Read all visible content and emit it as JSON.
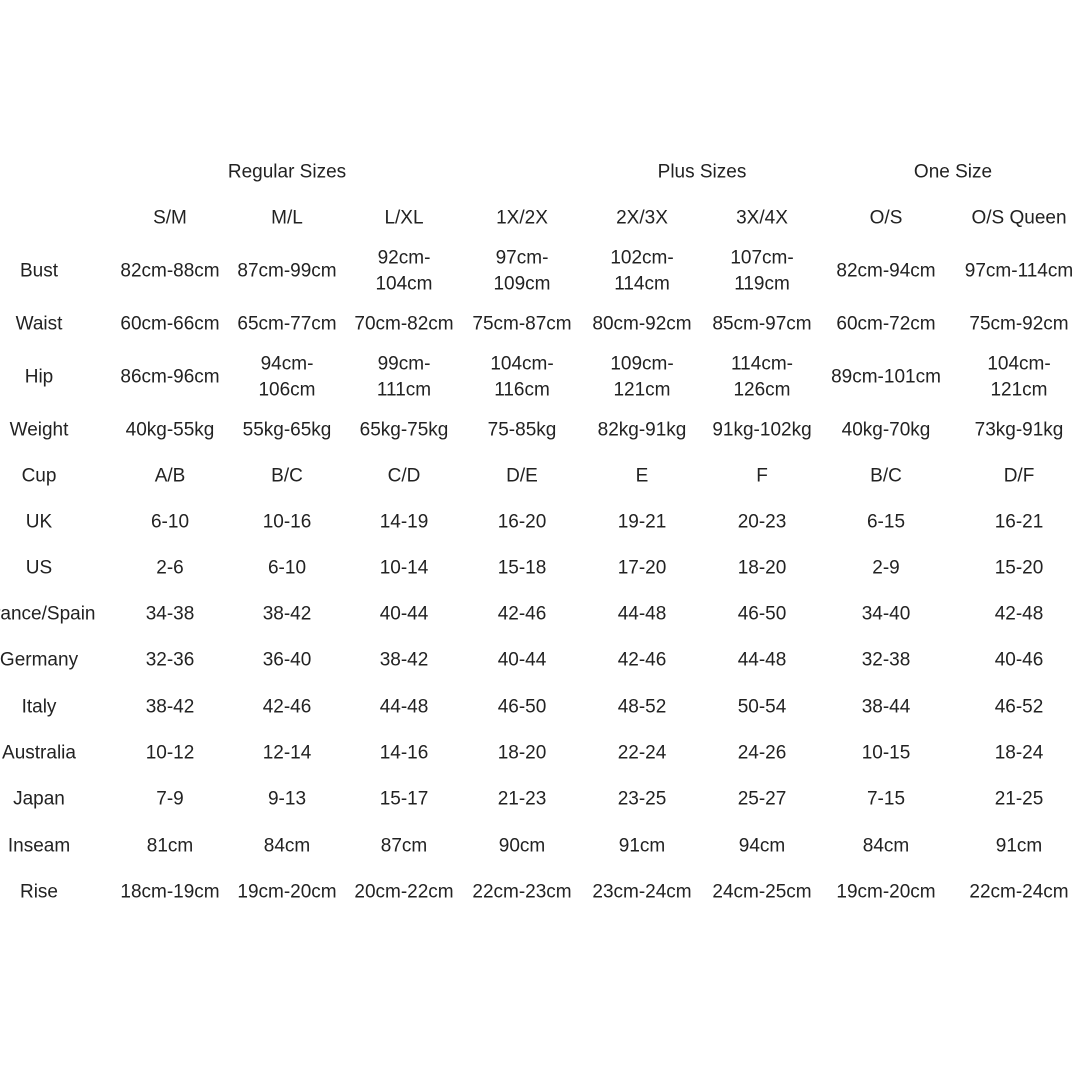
{
  "table": {
    "group_headers": [
      "Regular Sizes",
      "Plus Sizes",
      "One Size"
    ],
    "columns": [
      "S/M",
      "M/L",
      "L/XL",
      "1X/2X",
      "2X/3X",
      "3X/4X",
      "O/S",
      "O/S Queen"
    ],
    "rows": [
      {
        "label": "Bust",
        "cells": [
          "82cm-88cm",
          "87cm-99cm",
          [
            "92cm-",
            "104cm"
          ],
          [
            "97cm-",
            "109cm"
          ],
          [
            "102cm-",
            "114cm"
          ],
          [
            "107cm-",
            "119cm"
          ],
          "82cm-94cm",
          "97cm-114cm"
        ]
      },
      {
        "label": "Waist",
        "cells": [
          "60cm-66cm",
          "65cm-77cm",
          "70cm-82cm",
          "75cm-87cm",
          "80cm-92cm",
          "85cm-97cm",
          "60cm-72cm",
          "75cm-92cm"
        ]
      },
      {
        "label": "Hip",
        "cells": [
          "86cm-96cm",
          [
            "94cm-",
            "106cm"
          ],
          [
            "99cm-",
            "111cm"
          ],
          [
            "104cm-",
            "116cm"
          ],
          [
            "109cm-",
            "121cm"
          ],
          [
            "114cm-",
            "126cm"
          ],
          "89cm-101cm",
          [
            "104cm-",
            "121cm"
          ]
        ]
      },
      {
        "label": "Weight",
        "cells": [
          "40kg-55kg",
          "55kg-65kg",
          "65kg-75kg",
          "75-85kg",
          "82kg-91kg",
          "91kg-102kg",
          "40kg-70kg",
          "73kg-91kg"
        ]
      },
      {
        "label": "Cup",
        "cells": [
          "A/B",
          "B/C",
          "C/D",
          "D/E",
          "E",
          "F",
          "B/C",
          "D/F"
        ]
      },
      {
        "label": "UK",
        "cells": [
          "6-10",
          "10-16",
          "14-19",
          "16-20",
          "19-21",
          "20-23",
          "6-15",
          "16-21"
        ]
      },
      {
        "label": "US",
        "cells": [
          "2-6",
          "6-10",
          "10-14",
          "15-18",
          "17-20",
          "18-20",
          "2-9",
          "15-20"
        ]
      },
      {
        "label": "France/Spain",
        "cells": [
          "34-38",
          "38-42",
          "40-44",
          "42-46",
          "44-48",
          "46-50",
          "34-40",
          "42-48"
        ]
      },
      {
        "label": "Germany",
        "cells": [
          "32-36",
          "36-40",
          "38-42",
          "40-44",
          "42-46",
          "44-48",
          "32-38",
          "40-46"
        ]
      },
      {
        "label": "Italy",
        "cells": [
          "38-42",
          "42-46",
          "44-48",
          "46-50",
          "48-52",
          "50-54",
          "38-44",
          "46-52"
        ]
      },
      {
        "label": "Australia",
        "cells": [
          "10-12",
          "12-14",
          "14-16",
          "18-20",
          "22-24",
          "24-26",
          "10-15",
          "18-24"
        ]
      },
      {
        "label": "Japan",
        "cells": [
          "7-9",
          "9-13",
          "15-17",
          "21-23",
          "23-25",
          "25-27",
          "7-15",
          "21-25"
        ]
      },
      {
        "label": "Inseam",
        "cells": [
          "81cm",
          "84cm",
          "87cm",
          "90cm",
          "91cm",
          "94cm",
          "84cm",
          "91cm"
        ]
      },
      {
        "label": "Rise",
        "cells": [
          "18cm-19cm",
          "19cm-20cm",
          "20cm-22cm",
          "22cm-23cm",
          "23cm-24cm",
          "24cm-25cm",
          "19cm-20cm",
          "22cm-24cm"
        ]
      }
    ]
  }
}
